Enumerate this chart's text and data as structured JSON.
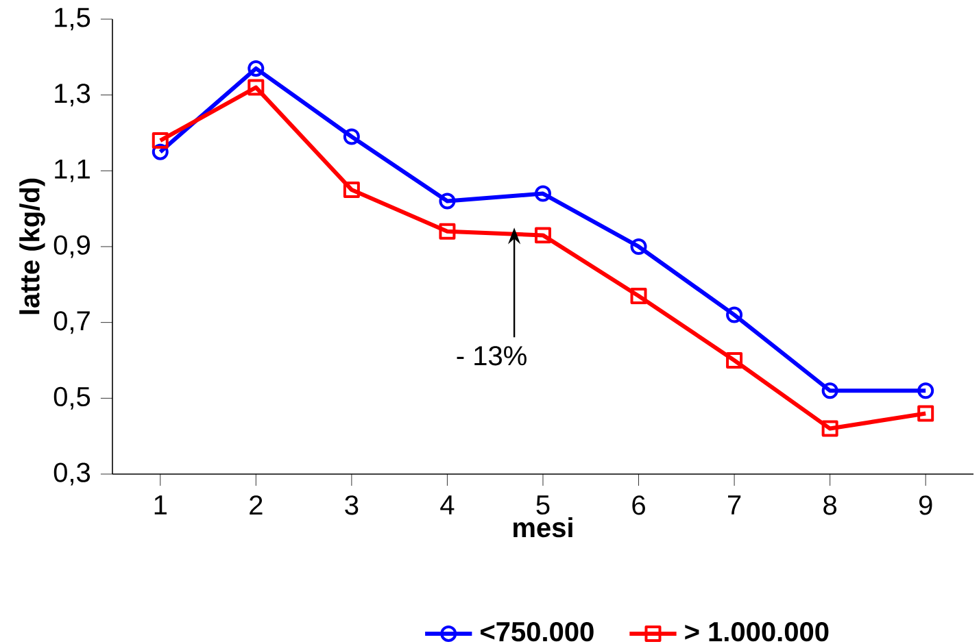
{
  "chart_data": {
    "type": "line",
    "xlabel": "mesi",
    "ylabel": "latte (kg/d)",
    "x": [
      1,
      2,
      3,
      4,
      5,
      6,
      7,
      8,
      9
    ],
    "xlim": [
      0.5,
      9.5
    ],
    "xticks": [
      1,
      2,
      3,
      4,
      5,
      6,
      7,
      8,
      9
    ],
    "ylim": [
      0.3,
      1.5
    ],
    "yticks": [
      {
        "value": 0.3,
        "label": "0,3"
      },
      {
        "value": 0.5,
        "label": "0,5"
      },
      {
        "value": 0.7,
        "label": "0,7"
      },
      {
        "value": 0.9,
        "label": "0,9"
      },
      {
        "value": 1.1,
        "label": "1,1"
      },
      {
        "value": 1.3,
        "label": "1,3"
      },
      {
        "value": 1.5,
        "label": "1,5"
      }
    ],
    "series": [
      {
        "name": "<750.000",
        "color": "#0000ff",
        "marker": "circle",
        "values": [
          1.15,
          1.37,
          1.19,
          1.02,
          1.04,
          0.9,
          0.72,
          0.52,
          0.52
        ]
      },
      {
        "name": "> 1.000.000",
        "color": "#ff0000",
        "marker": "square",
        "values": [
          1.18,
          1.32,
          1.05,
          0.94,
          0.93,
          0.77,
          0.6,
          0.42,
          0.46
        ]
      }
    ],
    "annotations": [
      {
        "text": "- 13%",
        "x": 4.7,
        "y": 0.95
      }
    ],
    "grid": false,
    "legend": "bottom"
  }
}
